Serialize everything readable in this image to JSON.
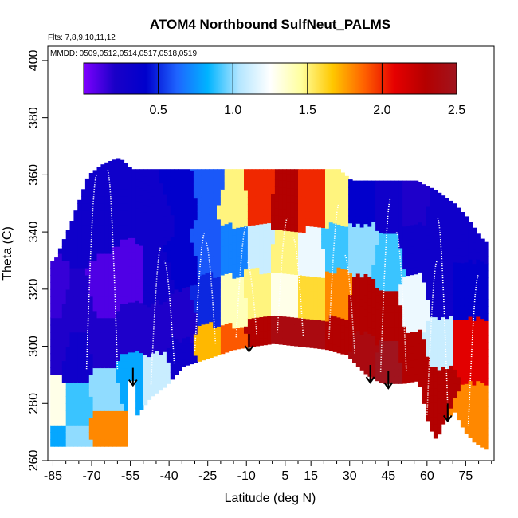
{
  "chart_data": {
    "type": "heatmap",
    "title": "ATOM4 Northbound SulfNeut_PALMS",
    "annotations": [
      "Flts: 7,8,9,10,11,12",
      "MMDD: 0509,0512,0514,0517,0518,0519"
    ],
    "xlabel": "Latitude (deg N)",
    "ylabel": "Theta (C)",
    "xlim": [
      -87,
      86
    ],
    "ylim": [
      260,
      405
    ],
    "x_ticks": [
      -85,
      -70,
      -55,
      -40,
      -25,
      -10,
      5,
      15,
      30,
      45,
      60,
      75
    ],
    "x_tick_labels": [
      "-85",
      "-70",
      "-55",
      "-40",
      "-25",
      "-10",
      "5",
      "15",
      "30",
      "45",
      "60",
      "75"
    ],
    "y_ticks": [
      260,
      280,
      300,
      320,
      340,
      360,
      380,
      400
    ],
    "y_tick_labels": [
      "260",
      "280",
      "300",
      "320",
      "340",
      "360",
      "380",
      "400"
    ],
    "colorbar": {
      "min": 0,
      "max": 2.5,
      "ticks": [
        0.5,
        1.0,
        1.5,
        2.0,
        2.5
      ],
      "tick_labels": [
        "0.5",
        "1.0",
        "1.5",
        "2.0",
        "2.5"
      ],
      "colors": [
        "#7f00ff",
        "#1a00c8",
        "#0000cc",
        "#1e64ff",
        "#00b4ff",
        "#b4e6ff",
        "#ffffff",
        "#ffff9e",
        "#ffc800",
        "#ff6400",
        "#e60000",
        "#b40000",
        "#a0141e"
      ]
    },
    "grid": false,
    "arrows_lat": [
      -54,
      -9,
      38,
      45,
      68
    ],
    "surface_theta": [
      [
        -54,
        288
      ],
      [
        -53,
        276
      ],
      [
        -48,
        282
      ],
      [
        -42,
        286
      ],
      [
        -35,
        293
      ],
      [
        -25,
        296
      ],
      [
        -15,
        299
      ],
      [
        -8,
        300
      ],
      [
        0,
        301
      ],
      [
        10,
        300
      ],
      [
        20,
        299
      ],
      [
        28,
        297
      ],
      [
        36,
        290
      ],
      [
        42,
        287
      ],
      [
        50,
        287
      ],
      [
        56,
        288
      ],
      [
        60,
        272
      ],
      [
        63,
        267
      ],
      [
        66,
        274
      ],
      [
        70,
        277
      ],
      [
        74,
        270
      ],
      [
        78,
        266
      ],
      [
        82,
        264
      ]
    ],
    "data_top_theta": [
      [
        -85,
        330
      ],
      [
        -78,
        345
      ],
      [
        -72,
        360
      ],
      [
        -66,
        364
      ],
      [
        -60,
        366
      ],
      [
        -55,
        362
      ],
      [
        -45,
        362
      ],
      [
        -30,
        362
      ],
      [
        -15,
        362
      ],
      [
        0,
        362
      ],
      [
        10,
        362
      ],
      [
        25,
        362
      ],
      [
        30,
        358
      ],
      [
        40,
        358
      ],
      [
        55,
        358
      ],
      [
        62,
        355
      ],
      [
        70,
        350
      ],
      [
        75,
        345
      ],
      [
        80,
        338
      ],
      [
        84,
        335
      ]
    ],
    "field_cells": [
      [
        -85,
        265,
        0.8
      ],
      [
        -85,
        280,
        1.3
      ],
      [
        -85,
        300,
        0.2
      ],
      [
        -85,
        320,
        0.15
      ],
      [
        -75,
        265,
        1.0
      ],
      [
        -75,
        280,
        0.9
      ],
      [
        -75,
        295,
        0.3
      ],
      [
        -75,
        315,
        0.2
      ],
      [
        -75,
        340,
        0.3
      ],
      [
        -65,
        270,
        1.8
      ],
      [
        -65,
        285,
        1.0
      ],
      [
        -65,
        300,
        0.2
      ],
      [
        -65,
        320,
        0.1
      ],
      [
        -65,
        345,
        0.3
      ],
      [
        -55,
        290,
        0.8
      ],
      [
        -55,
        305,
        0.2
      ],
      [
        -55,
        325,
        0.1
      ],
      [
        -55,
        350,
        0.3
      ],
      [
        -45,
        290,
        1.1
      ],
      [
        -45,
        305,
        0.2
      ],
      [
        -45,
        325,
        0.3
      ],
      [
        -45,
        345,
        0.3
      ],
      [
        -35,
        295,
        0.3
      ],
      [
        -35,
        310,
        0.2
      ],
      [
        -35,
        330,
        0.4
      ],
      [
        -35,
        352,
        0.4
      ],
      [
        -25,
        300,
        1.7
      ],
      [
        -25,
        315,
        0.5
      ],
      [
        -25,
        335,
        0.6
      ],
      [
        -25,
        355,
        0.6
      ],
      [
        -15,
        300,
        1.9
      ],
      [
        -15,
        315,
        1.4
      ],
      [
        -15,
        335,
        0.7
      ],
      [
        -15,
        350,
        1.5
      ],
      [
        -5,
        302,
        2.3
      ],
      [
        -5,
        318,
        1.5
      ],
      [
        -5,
        335,
        1.1
      ],
      [
        -5,
        352,
        2.0
      ],
      [
        5,
        302,
        2.4
      ],
      [
        5,
        318,
        1.3
      ],
      [
        5,
        332,
        1.5
      ],
      [
        5,
        350,
        2.3
      ],
      [
        15,
        302,
        2.4
      ],
      [
        15,
        318,
        1.6
      ],
      [
        15,
        332,
        1.2
      ],
      [
        15,
        350,
        2.0
      ],
      [
        25,
        302,
        2.3
      ],
      [
        25,
        318,
        1.8
      ],
      [
        25,
        335,
        0.9
      ],
      [
        25,
        350,
        1.5
      ],
      [
        35,
        295,
        2.4
      ],
      [
        35,
        315,
        2.3
      ],
      [
        35,
        335,
        1.0
      ],
      [
        35,
        350,
        0.4
      ],
      [
        45,
        292,
        2.5
      ],
      [
        45,
        310,
        2.3
      ],
      [
        45,
        330,
        0.9
      ],
      [
        45,
        350,
        0.3
      ],
      [
        55,
        295,
        2.3
      ],
      [
        55,
        315,
        1.2
      ],
      [
        55,
        335,
        0.3
      ],
      [
        55,
        350,
        0.2
      ],
      [
        65,
        285,
        2.3
      ],
      [
        65,
        300,
        1.1
      ],
      [
        65,
        320,
        0.3
      ],
      [
        65,
        345,
        0.3
      ],
      [
        75,
        275,
        1.8
      ],
      [
        75,
        300,
        2.1
      ],
      [
        75,
        320,
        0.4
      ],
      [
        75,
        340,
        0.3
      ]
    ]
  }
}
